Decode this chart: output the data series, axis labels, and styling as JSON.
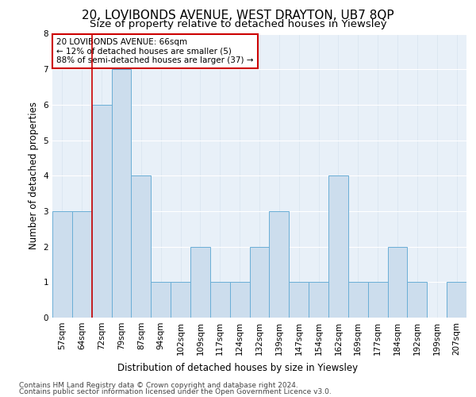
{
  "title": "20, LOVIBONDS AVENUE, WEST DRAYTON, UB7 8QP",
  "subtitle": "Size of property relative to detached houses in Yiewsley",
  "xlabel_bottom": "Distribution of detached houses by size in Yiewsley",
  "ylabel": "Number of detached properties",
  "footnote1": "Contains HM Land Registry data © Crown copyright and database right 2024.",
  "footnote2": "Contains public sector information licensed under the Open Government Licence v3.0.",
  "categories": [
    "57sqm",
    "64sqm",
    "72sqm",
    "79sqm",
    "87sqm",
    "94sqm",
    "102sqm",
    "109sqm",
    "117sqm",
    "124sqm",
    "132sqm",
    "139sqm",
    "147sqm",
    "154sqm",
    "162sqm",
    "169sqm",
    "177sqm",
    "184sqm",
    "192sqm",
    "199sqm",
    "207sqm"
  ],
  "values": [
    3,
    3,
    6,
    7,
    4,
    1,
    1,
    2,
    1,
    1,
    2,
    3,
    1,
    1,
    4,
    1,
    1,
    2,
    1,
    0,
    1
  ],
  "bar_color": "#ccdded",
  "bar_edge_color": "#6aaed6",
  "property_line_x": 1,
  "property_line_color": "#cc0000",
  "annotation_box_text": "20 LOVIBONDS AVENUE: 66sqm\n← 12% of detached houses are smaller (5)\n88% of semi-detached houses are larger (37) →",
  "annotation_box_color": "#ffffff",
  "annotation_box_edge_color": "#cc0000",
  "ylim": [
    0,
    8
  ],
  "yticks": [
    0,
    1,
    2,
    3,
    4,
    5,
    6,
    7,
    8
  ],
  "plot_bg_color": "#e8f0f8",
  "grid_color": "#d0dce8",
  "title_fontsize": 11,
  "subtitle_fontsize": 9.5,
  "ylabel_fontsize": 8.5,
  "tick_fontsize": 7.5,
  "annotation_fontsize": 7.5,
  "footnote_fontsize": 6.5
}
